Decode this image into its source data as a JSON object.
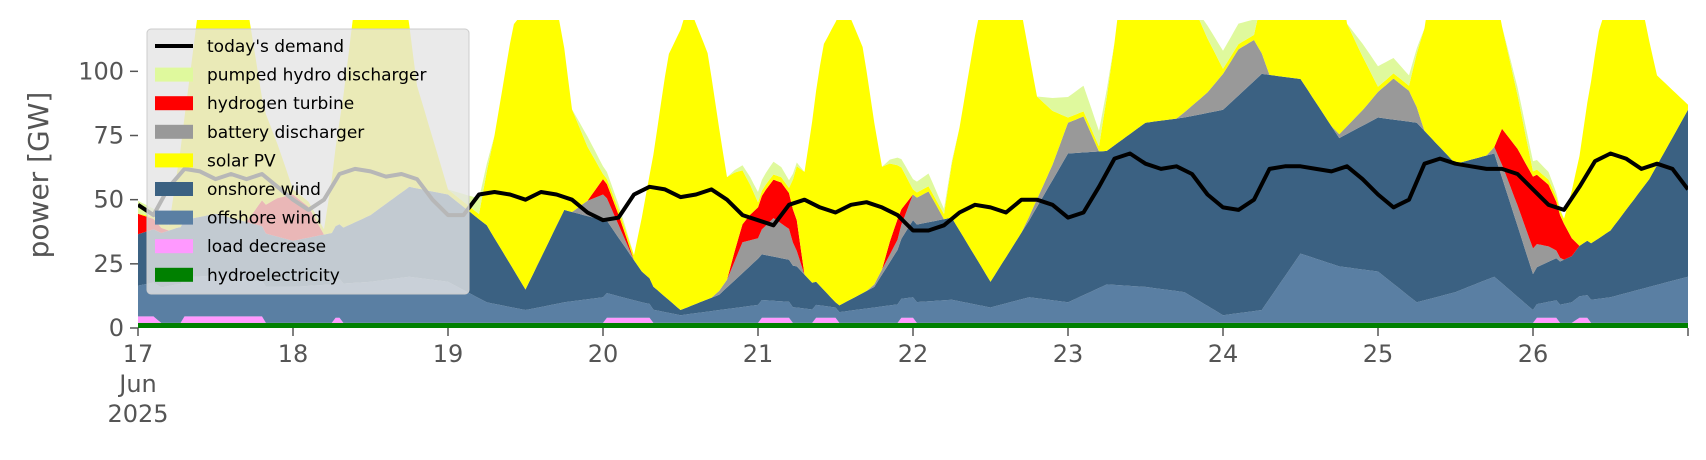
{
  "chart_data": {
    "type": "area",
    "stacked": true,
    "ylabel": "power [GW]",
    "ylim": [
      0,
      120
    ],
    "yticks": [
      0,
      25,
      50,
      75,
      100
    ],
    "xlim": [
      0,
      10
    ],
    "x_ticks": [
      {
        "x": 0,
        "label": "17\nJun\n2025"
      },
      {
        "x": 1,
        "label": "18"
      },
      {
        "x": 2,
        "label": "19"
      },
      {
        "x": 3,
        "label": "20"
      },
      {
        "x": 4,
        "label": "21"
      },
      {
        "x": 5,
        "label": "22"
      },
      {
        "x": 6,
        "label": "23"
      },
      {
        "x": 7,
        "label": "24"
      },
      {
        "x": 8,
        "label": "25"
      },
      {
        "x": 9,
        "label": "26"
      }
    ],
    "x_unit": "days since 17 Jun 2025",
    "grid": false,
    "legend_position": "top-left",
    "series": [
      {
        "name": "hydroelectricity",
        "color": "#008000",
        "x": [
          0,
          10
        ],
        "values": [
          2,
          2
        ]
      },
      {
        "name": "load decrease",
        "color": "#ff99ff",
        "x": [
          0,
          0.12,
          0.13,
          0.29,
          0.3,
          0.8,
          0.81,
          1.25,
          1.26,
          1.3,
          1.31,
          3,
          3.01,
          3.3,
          3.31,
          4,
          4.01,
          4.2,
          4.21,
          4.35,
          4.36,
          4.5,
          4.51,
          4.9,
          4.91,
          5.0,
          5.01,
          9,
          9.01,
          9.15,
          9.16,
          9.27,
          9.28,
          9.35,
          9.36,
          10
        ],
        "values": [
          2.5,
          2.5,
          0,
          0,
          2.5,
          2.5,
          0,
          0,
          2,
          2,
          0,
          0,
          2,
          2,
          0,
          0,
          2,
          2,
          0,
          0,
          2,
          2,
          0,
          0,
          2,
          2,
          0,
          0,
          2,
          2,
          0,
          0,
          2,
          2,
          0,
          0
        ]
      },
      {
        "name": "offshore wind",
        "color": "#5a7fa3",
        "x": [
          0,
          0.25,
          0.5,
          0.75,
          1,
          1.25,
          1.5,
          1.75,
          2,
          2.25,
          2.5,
          2.75,
          3,
          3.25,
          3.5,
          3.75,
          4,
          4.25,
          4.5,
          4.75,
          5,
          5.25,
          5.5,
          5.75,
          6,
          6.25,
          6.5,
          6.75,
          7,
          7.25,
          7.5,
          7.75,
          8,
          8.25,
          8.5,
          8.75,
          9,
          9.25,
          9.5,
          9.75,
          10
        ],
        "values": [
          12,
          15,
          16,
          14,
          14,
          15,
          16,
          18,
          16,
          8,
          5,
          8,
          10,
          6,
          3,
          5,
          7,
          6,
          4,
          6,
          8,
          9,
          6,
          10,
          8,
          15,
          14,
          12,
          3,
          5,
          27,
          22,
          20,
          8,
          12,
          18,
          5,
          8,
          10,
          14,
          18
        ]
      },
      {
        "name": "onshore wind",
        "color": "#3b6182",
        "x": [
          0,
          0.25,
          0.5,
          0.75,
          1,
          1.25,
          1.5,
          1.75,
          2,
          2.25,
          2.5,
          2.75,
          3,
          3.25,
          3.5,
          3.75,
          4,
          4.25,
          4.5,
          4.75,
          5,
          5.25,
          5.5,
          5.75,
          6,
          6.25,
          6.5,
          6.75,
          7,
          7.25,
          7.5,
          7.75,
          8,
          8.25,
          8.5,
          8.75,
          9,
          9.25,
          9.5,
          9.75,
          10
        ],
        "values": [
          20,
          22,
          24,
          22,
          18,
          20,
          26,
          35,
          34,
          30,
          8,
          36,
          30,
          12,
          2,
          6,
          18,
          16,
          2,
          8,
          30,
          32,
          10,
          30,
          58,
          52,
          64,
          68,
          80,
          92,
          68,
          50,
          60,
          70,
          50,
          48,
          14,
          18,
          26,
          42,
          65
        ]
      },
      {
        "name": "battery discharger",
        "color": "#999999",
        "x": [
          0,
          2.8,
          2.9,
          3.0,
          3.1,
          3.2,
          3.3,
          3.35,
          3.4,
          3.6,
          3.65,
          3.7,
          3.8,
          3.9,
          4.0,
          4.1,
          4.2,
          4.3,
          4.35,
          4.6,
          4.65,
          4.7,
          4.8,
          4.9,
          5.0,
          5.1,
          5.2,
          5.3,
          5.35,
          5.6,
          5.65,
          5.7,
          5.8,
          5.9,
          6.0,
          6.1,
          6.2,
          6.3,
          6.35,
          6.6,
          6.65,
          6.7,
          6.8,
          6.9,
          7.0,
          7.1,
          7.2,
          7.3,
          7.35,
          7.6,
          7.65,
          7.7,
          7.8,
          7.9,
          8.0,
          8.1,
          8.2,
          8.3,
          8.35,
          8.6,
          8.65,
          8.7,
          8.8,
          8.9,
          9.0,
          9.1,
          9.2,
          9.3,
          9.35,
          10
        ],
        "values": [
          0,
          0,
          6,
          10,
          5,
          0,
          0,
          0,
          0,
          0,
          0,
          0,
          3,
          12,
          8,
          15,
          12,
          0,
          0,
          0,
          0,
          0,
          2,
          4,
          10,
          12,
          0,
          0,
          0,
          0,
          0,
          0,
          3,
          6,
          12,
          14,
          0,
          0,
          0,
          0,
          0,
          0,
          4,
          8,
          14,
          18,
          16,
          0,
          0,
          0,
          0,
          0,
          3,
          6,
          10,
          16,
          12,
          0,
          0,
          0,
          0,
          0,
          5,
          8,
          10,
          6,
          0,
          0,
          0,
          0
        ]
      },
      {
        "name": "hydrogen turbine",
        "color": "#ff0000",
        "x": [
          0,
          0.1,
          0.2,
          0.3,
          0.7,
          0.8,
          0.9,
          1.0,
          1.1,
          1.2,
          2.9,
          3.0,
          3.1,
          3.2,
          3.8,
          3.85,
          3.95,
          4.05,
          4.15,
          4.25,
          4.3,
          4.8,
          4.85,
          4.9,
          4.95,
          5.0,
          8.75,
          8.8,
          8.9,
          9.0,
          9.1,
          9.2,
          9.3,
          9.35,
          10
        ],
        "values": [
          8,
          4,
          0,
          0,
          0,
          10,
          15,
          18,
          12,
          0,
          0,
          6,
          4,
          0,
          0,
          4,
          10,
          14,
          16,
          12,
          0,
          0,
          5,
          8,
          4,
          0,
          0,
          14,
          22,
          28,
          24,
          14,
          0,
          0,
          0
        ]
      },
      {
        "name": "solar PV",
        "color": "#ffff00",
        "x": [
          0,
          0.2,
          0.3,
          0.42,
          0.55,
          0.68,
          0.8,
          1.0,
          1.2,
          1.3,
          1.42,
          1.55,
          1.68,
          1.8,
          2.0,
          2.2,
          2.3,
          2.42,
          2.55,
          2.68,
          2.8,
          3.0,
          3.2,
          3.3,
          3.42,
          3.55,
          3.68,
          3.8,
          4.0,
          4.2,
          4.3,
          4.42,
          4.55,
          4.68,
          4.8,
          5.0,
          5.2,
          5.3,
          5.42,
          5.55,
          5.68,
          5.8,
          6.0,
          6.2,
          6.3,
          6.42,
          6.55,
          6.68,
          6.8,
          7.0,
          7.2,
          7.3,
          7.42,
          7.55,
          7.68,
          7.8,
          8.0,
          8.2,
          8.3,
          8.42,
          8.55,
          8.68,
          8.8,
          9.0,
          9.2,
          9.3,
          9.42,
          9.55,
          9.68,
          9.8,
          10
        ],
        "values": [
          0,
          2,
          40,
          95,
          118,
          95,
          40,
          2,
          2,
          40,
          95,
          118,
          95,
          40,
          2,
          2,
          40,
          95,
          118,
          95,
          40,
          2,
          2,
          40,
          95,
          118,
          95,
          40,
          2,
          2,
          40,
          95,
          118,
          95,
          40,
          2,
          2,
          40,
          95,
          118,
          95,
          40,
          2,
          2,
          40,
          95,
          118,
          95,
          40,
          2,
          2,
          40,
          95,
          118,
          95,
          40,
          2,
          2,
          40,
          95,
          118,
          95,
          40,
          2,
          2,
          35,
          80,
          100,
          80,
          35,
          2
        ]
      },
      {
        "name": "pumped hydro discharger",
        "color": "#dff99d",
        "x": [
          0,
          0.1,
          0.2,
          2.0,
          2.1,
          2.2,
          2.3,
          2.8,
          2.9,
          3.0,
          3.1,
          3.2,
          3.8,
          3.9,
          4.0,
          4.1,
          4.2,
          4.3,
          4.8,
          4.9,
          5.0,
          5.1,
          5.2,
          5.3,
          5.8,
          5.9,
          6.0,
          6.1,
          6.2,
          6.3,
          6.8,
          6.9,
          7.0,
          7.1,
          7.2,
          7.3,
          7.8,
          7.9,
          8.0,
          8.1,
          8.2,
          8.3,
          8.8,
          8.9,
          9.0,
          9.1,
          9.2,
          10
        ],
        "values": [
          5,
          3,
          0,
          0,
          3,
          6,
          0,
          0,
          4,
          3,
          2,
          0,
          0,
          2,
          4,
          5,
          3,
          0,
          0,
          3,
          4,
          5,
          2,
          0,
          0,
          5,
          8,
          10,
          6,
          0,
          0,
          5,
          7,
          8,
          6,
          0,
          0,
          5,
          8,
          6,
          4,
          0,
          0,
          3,
          4,
          3,
          0,
          0
        ]
      }
    ],
    "demand": {
      "name": "today's demand",
      "color": "#000000",
      "x": [
        0,
        0.1,
        0.2,
        0.3,
        0.4,
        0.5,
        0.6,
        0.7,
        0.8,
        0.9,
        1.0,
        1.1,
        1.2,
        1.3,
        1.4,
        1.5,
        1.6,
        1.7,
        1.8,
        1.9,
        2.0,
        2.1,
        2.2,
        2.3,
        2.4,
        2.5,
        2.6,
        2.7,
        2.8,
        2.9,
        3.0,
        3.1,
        3.2,
        3.3,
        3.4,
        3.5,
        3.6,
        3.7,
        3.8,
        3.9,
        4.0,
        4.1,
        4.2,
        4.3,
        4.4,
        4.5,
        4.6,
        4.7,
        4.8,
        4.9,
        5.0,
        5.1,
        5.2,
        5.3,
        5.4,
        5.5,
        5.6,
        5.7,
        5.8,
        5.9,
        6.0,
        6.1,
        6.2,
        6.3,
        6.4,
        6.5,
        6.6,
        6.7,
        6.8,
        6.9,
        7.0,
        7.1,
        7.2,
        7.3,
        7.4,
        7.5,
        7.6,
        7.7,
        7.8,
        7.9,
        8.0,
        8.1,
        8.2,
        8.3,
        8.4,
        8.5,
        8.6,
        8.7,
        8.8,
        8.9,
        9.0,
        9.1,
        9.2,
        9.3,
        9.4,
        9.5,
        9.6,
        9.7,
        9.8,
        9.9,
        10
      ],
      "values": [
        48,
        44,
        55,
        62,
        61,
        58,
        60,
        58,
        60,
        55,
        50,
        46,
        50,
        60,
        62,
        61,
        59,
        60,
        58,
        50,
        44,
        44,
        52,
        53,
        52,
        50,
        53,
        52,
        50,
        45,
        42,
        43,
        52,
        55,
        54,
        51,
        52,
        54,
        50,
        44,
        42,
        40,
        48,
        50,
        47,
        45,
        48,
        49,
        47,
        44,
        38,
        38,
        40,
        45,
        48,
        47,
        45,
        50,
        50,
        48,
        43,
        45,
        55,
        66,
        68,
        64,
        62,
        63,
        60,
        52,
        47,
        46,
        50,
        62,
        63,
        63,
        62,
        61,
        63,
        58,
        52,
        47,
        50,
        64,
        66,
        64,
        63,
        62,
        62,
        60,
        54,
        48,
        46,
        55,
        65,
        68,
        66,
        62,
        64,
        62,
        54
      ]
    }
  },
  "legend_items": [
    {
      "label": "today's demand",
      "color": "#000000",
      "kind": "line"
    },
    {
      "label": "pumped hydro discharger",
      "color": "#dff99d",
      "kind": "patch"
    },
    {
      "label": "hydrogen turbine",
      "color": "#ff0000",
      "kind": "patch"
    },
    {
      "label": "battery discharger",
      "color": "#999999",
      "kind": "patch"
    },
    {
      "label": "solar PV",
      "color": "#ffff00",
      "kind": "patch"
    },
    {
      "label": "onshore wind",
      "color": "#3b6182",
      "kind": "patch"
    },
    {
      "label": "offshore wind",
      "color": "#5a7fa3",
      "kind": "patch"
    },
    {
      "label": "load decrease",
      "color": "#ff99ff",
      "kind": "patch"
    },
    {
      "label": "hydroelectricity",
      "color": "#008000",
      "kind": "patch"
    }
  ]
}
